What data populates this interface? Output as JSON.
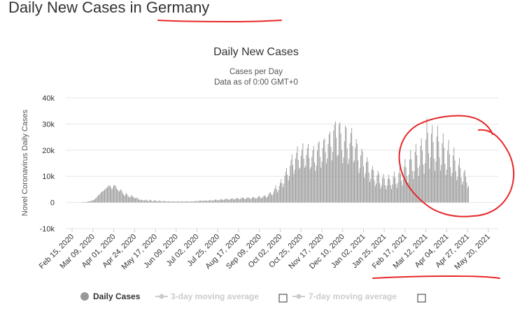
{
  "page": {
    "heading": "Daily New Cases in Germany"
  },
  "colors": {
    "bar": "#999999",
    "annotation": "#e8272a",
    "grid": "#e6e6e6",
    "legend_disabled": "#cccccc"
  },
  "legend": {
    "items": [
      {
        "label": "Daily Cases",
        "active": true
      },
      {
        "label": "3-day moving average",
        "active": false
      },
      {
        "label": "7-day moving average",
        "active": false
      }
    ]
  },
  "chart_data": {
    "type": "bar",
    "title": "Daily New Cases",
    "subtitle": "Cases per Day",
    "subtitle2": "Data as of 0:00 GMT+0",
    "xlabel": "",
    "ylabel": "Novel Coronavirus Daily Cases",
    "ylim": [
      -10000,
      40000
    ],
    "yticks": [
      40000,
      30000,
      20000,
      10000,
      0,
      -10000
    ],
    "ytick_labels": [
      "40k",
      "30k",
      "20k",
      "10k",
      "0",
      "-10k"
    ],
    "x_tick_labels": [
      "Feb 15, 2020",
      "Mar 09, 2020",
      "Apr 01, 2020",
      "Apr 24, 2020",
      "May 17, 2020",
      "Jun 09, 2020",
      "Jul 02, 2020",
      "Jul 25, 2020",
      "Aug 17, 2020",
      "Sep 09, 2020",
      "Oct 02, 2020",
      "Oct 25, 2020",
      "Nov 17, 2020",
      "Dec 10, 2020",
      "Jan 02, 2021",
      "Jan 25, 2021",
      "Feb 17, 2021",
      "Mar 12, 2021",
      "Apr 04, 2021",
      "Apr 27, 2021",
      "May 20, 2021"
    ],
    "start_date": "2020-02-15",
    "end_date": "2021-05-27",
    "series": [
      {
        "name": "Daily Cases",
        "daily_values_from_start_date": [
          0,
          0,
          0,
          0,
          0,
          0,
          0,
          0,
          0,
          0,
          0,
          20,
          40,
          70,
          110,
          160,
          230,
          310,
          380,
          440,
          510,
          590,
          680,
          800,
          980,
          1200,
          1500,
          1900,
          2300,
          2700,
          3100,
          3200,
          3800,
          4100,
          4300,
          4500,
          4900,
          5200,
          5500,
          5900,
          6200,
          6600,
          6400,
          5700,
          4900,
          5600,
          6500,
          6700,
          6300,
          5500,
          4900,
          4700,
          4100,
          4600,
          5100,
          4400,
          3600,
          3000,
          2600,
          3000,
          3600,
          3100,
          2400,
          2100,
          1900,
          2500,
          2800,
          2300,
          2000,
          1700,
          1600,
          1900,
          1700,
          1400,
          1100,
          900,
          1100,
          1000,
          900,
          800,
          700,
          1000,
          1100,
          700,
          600,
          650,
          900,
          1000,
          600,
          500,
          550,
          800,
          900,
          550,
          450,
          500,
          650,
          700,
          500,
          400,
          400,
          550,
          600,
          450,
          350,
          350,
          450,
          500,
          400,
          300,
          320,
          420,
          450,
          350,
          300,
          300,
          400,
          430,
          380,
          300,
          320,
          420,
          460,
          360,
          290,
          310,
          400,
          440,
          420,
          350,
          300,
          380,
          460,
          400,
          380,
          420,
          520,
          600,
          480,
          500,
          580,
          700,
          760,
          620,
          580,
          620,
          720,
          820,
          740,
          600,
          640,
          720,
          850,
          900,
          780,
          700,
          760,
          900,
          1050,
          1150,
          960,
          800,
          850,
          1000,
          1200,
          1300,
          1100,
          900,
          1000,
          1300,
          1400,
          1500,
          1200,
          1000,
          1050,
          1300,
          1500,
          1600,
          1350,
          1100,
          1200,
          1500,
          1700,
          1650,
          1400,
          1200,
          1300,
          1650,
          1900,
          1850,
          1500,
          1250,
          1350,
          1700,
          2000,
          1950,
          1600,
          1300,
          1450,
          1800,
          2100,
          2100,
          1750,
          1400,
          1550,
          1900,
          2300,
          2400,
          1900,
          1600,
          1750,
          2200,
          2600,
          2700,
          2200,
          1900,
          2200,
          3000,
          3600,
          4000,
          3300,
          2600,
          3200,
          4300,
          5400,
          6600,
          5100,
          3800,
          4600,
          6300,
          7500,
          8900,
          7300,
          5800,
          7200,
          10200,
          11700,
          13200,
          10600,
          8400,
          10100,
          14000,
          16300,
          18400,
          14300,
          10900,
          12500,
          16800,
          19000,
          21400,
          16200,
          12900,
          13400,
          17800,
          20100,
          22600,
          16800,
          13300,
          14100,
          18100,
          20800,
          22400,
          17000,
          12800,
          13600,
          17300,
          19900,
          21600,
          15300,
          12100,
          14200,
          19800,
          22700,
          23400,
          17500,
          13300,
          15600,
          20800,
          23900,
          24500,
          19200,
          14900,
          16800,
          22300,
          26100,
          27100,
          21300,
          16100,
          19300,
          27500,
          29800,
          31000,
          24700,
          17700,
          18300,
          29800,
          30700,
          26400,
          20100,
          15000,
          17200,
          23400,
          29400,
          28600,
          20600,
          14800,
          16800,
          22700,
          26500,
          28500,
          21600,
          15400,
          16100,
          21000,
          24200,
          22500,
          16100,
          11300,
          13200,
          17900,
          20600,
          19600,
          13800,
          9500,
          11100,
          15300,
          17200,
          15700,
          11400,
          7800,
          9000,
          12500,
          13900,
          12300,
          8500,
          6200,
          7200,
          10300,
          12100,
          11000,
          7400,
          5400,
          6500,
          9500,
          10900,
          9300,
          6600,
          5000,
          6400,
          9100,
          10600,
          8800,
          6500,
          5100,
          6900,
          10000,
          11800,
          9500,
          7000,
          5600,
          7500,
          11200,
          13500,
          11000,
          8300,
          6500,
          8900,
          13700,
          16600,
          13400,
          10000,
          7600,
          10600,
          16400,
          20100,
          16500,
          12000,
          9000,
          12000,
          19400,
          22400,
          18100,
          13300,
          10200,
          13900,
          21700,
          24500,
          19800,
          14500,
          11000,
          15000,
          24100,
          32400,
          26700,
          18800,
          12900,
          17200,
          26300,
          29500,
          23100,
          16800,
          12100,
          15700,
          25200,
          29200,
          23300,
          17200,
          12200,
          14300,
          22700,
          26400,
          20900,
          14800,
          10500,
          12600,
          19800,
          23900,
          18400,
          13500,
          9900,
          11300,
          17900,
          21100,
          16100,
          11900,
          8500,
          9800,
          14400,
          17000,
          13200,
          9600,
          6800,
          7900,
          11600,
          12500,
          9800,
          7600,
          5500,
          6400
        ]
      }
    ]
  }
}
